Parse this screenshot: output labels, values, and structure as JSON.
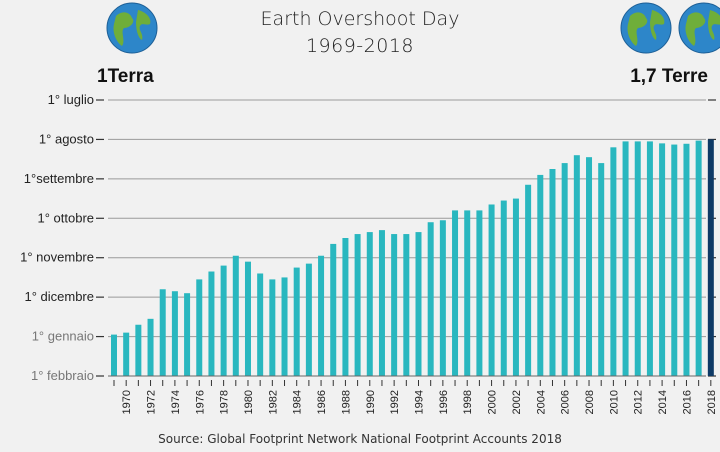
{
  "header": {
    "title_line1": "Earth Overshoot Day",
    "title_line2": "1969-2018",
    "left_label": "1Terra",
    "right_label": "1,7 Terre",
    "left_globe_icon": "earth-globe-icon",
    "right_globe_icon": "earth-globe-icon"
  },
  "footer": {
    "source": "Source: Global Footprint Network National Footprint Accounts 2018"
  },
  "colors": {
    "bar": "#29b7bf",
    "bar_last": "#0e3a66",
    "grid": "#9a9a9a",
    "ocean": "#2d86c9",
    "land": "#6fae3a"
  },
  "chart_data": {
    "type": "bar",
    "title": "Earth Overshoot Day 1969-2018",
    "y_categories": [
      "1° luglio",
      "1° agosto",
      "1°settembre",
      "1° ottobre",
      "1° novembre",
      "1° dicembre",
      "1° gennaio",
      "1° febbraio"
    ],
    "ylim_months_after_1_febbraio": [
      0,
      7
    ],
    "x_tick_labels": [
      "1970",
      "1972",
      "1974",
      "1976",
      "1978",
      "1980",
      "1982",
      "1984",
      "1986",
      "1988",
      "1990",
      "1992",
      "1994",
      "1996",
      "1998",
      "2000",
      "2002",
      "2004",
      "2006",
      "2008",
      "2010",
      "2012",
      "2014",
      "2016",
      "2018"
    ],
    "years": [
      1969,
      1970,
      1971,
      1972,
      1973,
      1974,
      1975,
      1976,
      1977,
      1978,
      1979,
      1980,
      1981,
      1982,
      1983,
      1984,
      1985,
      1986,
      1987,
      1988,
      1989,
      1990,
      1991,
      1992,
      1993,
      1994,
      1995,
      1996,
      1997,
      1998,
      1999,
      2000,
      2001,
      2002,
      2003,
      2004,
      2005,
      2006,
      2007,
      2008,
      2009,
      2010,
      2011,
      2012,
      2013,
      2014,
      2015,
      2016,
      2017,
      2018
    ],
    "values_months_after_1_febbraio": [
      1.05,
      1.1,
      1.3,
      1.45,
      2.2,
      2.15,
      2.1,
      2.45,
      2.65,
      2.8,
      3.05,
      2.9,
      2.6,
      2.45,
      2.5,
      2.75,
      2.85,
      3.05,
      3.35,
      3.5,
      3.6,
      3.65,
      3.7,
      3.6,
      3.6,
      3.65,
      3.9,
      3.95,
      4.2,
      4.2,
      4.2,
      4.35,
      4.45,
      4.5,
      4.85,
      5.1,
      5.25,
      5.4,
      5.6,
      5.55,
      5.4,
      5.8,
      5.95,
      5.95,
      5.95,
      5.9,
      5.87,
      5.89,
      5.97,
      6.0
    ],
    "highlight_year": 2018
  }
}
